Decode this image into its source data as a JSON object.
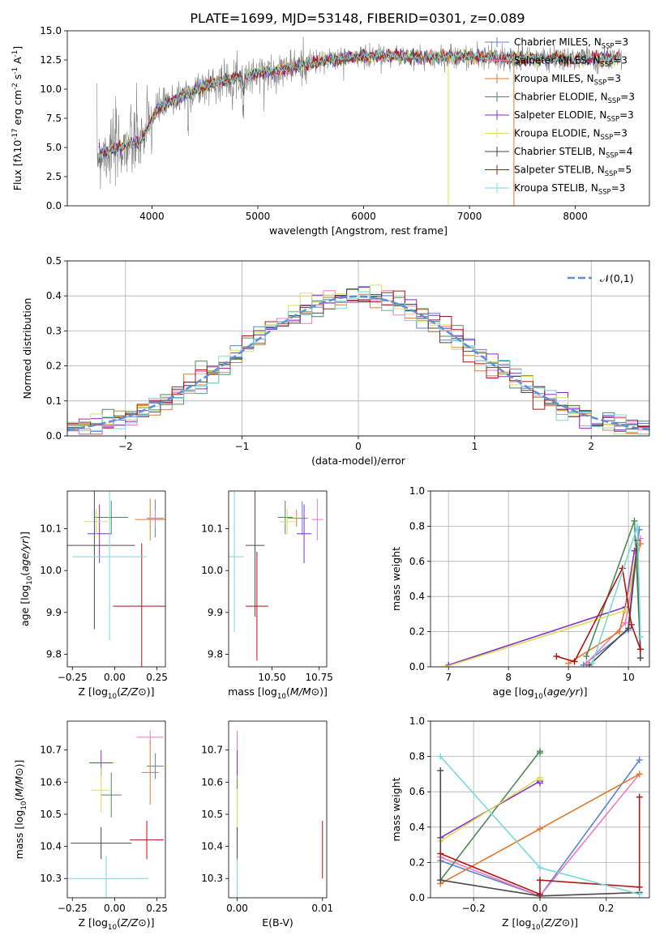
{
  "figure": {
    "title": "PLATE=1699, MJD=53148, FIBERID=0301, z=0.089"
  },
  "legend_labels": [
    "Chabrier MILES, N$_{SSP}$=3",
    "Salpeter MILES, N$_{SSP}$=3",
    "Kroupa MILES, N$_{SSP}$=3",
    "Chabrier ELODIE, N$_{SSP}$=3",
    "Salpeter ELODIE, N$_{SSP}$=3",
    "Kroupa ELODIE, N$_{SSP}$=3",
    "Chabrier STELIB, N$_{SSP}$=4",
    "Salpeter STELIB, N$_{SSP}$=5",
    "Kroupa STELIB, N$_{SSP}$=3"
  ],
  "colors": {
    "model_colors": [
      "#5b83d6",
      "#f07ac0",
      "#e07b2e",
      "#4e8a56",
      "#8b2fc4",
      "#d8e05a",
      "#4a4a4a",
      "#b01414",
      "#7ad8da"
    ],
    "data_gray": "#808080",
    "gauss_blue": "#5b8fd6"
  },
  "chart_data": [
    {
      "type": "line",
      "panel": "spectrum",
      "title": "PLATE=1699, MJD=53148, FIBERID=0301, z=0.089",
      "xlabel": "wavelength [Angstrom, rest frame]",
      "ylabel": "Flux [f$_\\lambda$10$^{-17}$ erg cm$^{-2}$ s$^{-1}$ A$^{-1}$]",
      "xlim": [
        3200,
        8700
      ],
      "ylim": [
        0,
        15
      ],
      "xticks": [
        4000,
        5000,
        6000,
        7000,
        8000
      ],
      "yticks": [
        0.0,
        2.5,
        5.0,
        7.5,
        10.0,
        12.5,
        15.0
      ],
      "continuum_x": [
        3500,
        3700,
        3900,
        4050,
        4300,
        4600,
        5000,
        5400,
        5800,
        6200,
        6600,
        7000,
        7500,
        8000,
        8400
      ],
      "continuum_y": [
        4.5,
        5.0,
        5.6,
        8.3,
        9.5,
        10.6,
        11.3,
        12.0,
        12.7,
        12.9,
        12.7,
        12.8,
        12.6,
        12.6,
        12.6
      ],
      "legend_placement": "right"
    },
    {
      "type": "histogram",
      "panel": "residuals",
      "xlabel": "(data-model)/error",
      "ylabel": "Normed distribution",
      "xlim": [
        -2.5,
        2.5
      ],
      "ylim": [
        0,
        0.5
      ],
      "xticks": [
        -2,
        -1,
        0,
        1,
        2
      ],
      "yticks": [
        0.0,
        0.1,
        0.2,
        0.3,
        0.4,
        0.5
      ],
      "bin_width": 0.1,
      "gaussian_label": "$\\mathcal{N}(0,1)$",
      "grid": true,
      "legend_placement": "top-right"
    },
    {
      "type": "scatter",
      "panel": "Z vs age",
      "xlabel": "Z [log$_{10}$($Z/Z_\\odot$)]",
      "ylabel": "age  [log$_{10}$($age/yr$)]",
      "xlim": [
        -0.28,
        0.3
      ],
      "ylim": [
        9.77,
        10.19
      ],
      "xticks": [
        -0.25,
        0.0,
        0.25
      ],
      "xtick_labels": [
        "−0.25",
        "0.00",
        "0.25"
      ],
      "yticks": [
        9.8,
        9.9,
        10.0,
        10.1
      ],
      "points": [
        {
          "x": 0.24,
          "y": 10.125,
          "xerr": 0.05,
          "yerr": 0.045
        },
        {
          "x": 0.24,
          "y": 10.125,
          "xerr": 0.04,
          "yerr": 0.02
        },
        {
          "x": 0.21,
          "y": 10.122,
          "xerr": 0.09,
          "yerr": 0.05
        },
        {
          "x": -0.02,
          "y": 10.127,
          "xerr": 0.1,
          "yerr": 0.04
        },
        {
          "x": -0.09,
          "y": 10.088,
          "xerr": 0.07,
          "yerr": 0.07
        },
        {
          "x": -0.11,
          "y": 10.117,
          "xerr": 0.07,
          "yerr": 0.03
        },
        {
          "x": -0.12,
          "y": 10.06,
          "xerr": 0.24,
          "yerr": 0.2
        },
        {
          "x": 0.16,
          "y": 9.915,
          "xerr": 0.17,
          "yerr": 0.15
        },
        {
          "x": -0.03,
          "y": 10.033,
          "xerr": 0.22,
          "yerr": 0.2
        }
      ]
    },
    {
      "type": "scatter",
      "panel": "mass vs age",
      "xlabel": "mass [log$_{10}$($M/M_\\odot$)]",
      "ylabel": "",
      "xlim": [
        10.27,
        10.79
      ],
      "ylim": [
        9.77,
        10.19
      ],
      "xticks": [
        10.25,
        10.5,
        10.75
      ],
      "xtick_labels": [
        "10.25",
        "10.50",
        "10.75"
      ],
      "yticks": [
        9.8,
        9.9,
        10.0,
        10.1
      ],
      "points": [
        {
          "x": 10.66,
          "y": 10.125,
          "xerr": 0.03,
          "yerr": 0.04
        },
        {
          "x": 10.74,
          "y": 10.122,
          "xerr": 0.03,
          "yerr": 0.05
        },
        {
          "x": 10.63,
          "y": 10.125,
          "xerr": 0.05,
          "yerr": 0.02
        },
        {
          "x": 10.57,
          "y": 10.127,
          "xerr": 0.04,
          "yerr": 0.04
        },
        {
          "x": 10.67,
          "y": 10.088,
          "xerr": 0.04,
          "yerr": 0.07
        },
        {
          "x": 10.58,
          "y": 10.117,
          "xerr": 0.04,
          "yerr": 0.03
        },
        {
          "x": 10.41,
          "y": 10.06,
          "xerr": 0.05,
          "yerr": 0.17
        },
        {
          "x": 10.42,
          "y": 9.915,
          "xerr": 0.06,
          "yerr": 0.13
        },
        {
          "x": 10.3,
          "y": 10.033,
          "xerr": 0.05,
          "yerr": 0.18
        }
      ]
    },
    {
      "type": "line",
      "panel": "age vs mass weight",
      "xlabel": "age  [log$_{10}$($age/yr$)]",
      "ylabel": "mass weight",
      "xlim": [
        6.7,
        10.35
      ],
      "ylim": [
        0,
        1
      ],
      "xticks": [
        7,
        8,
        9,
        10
      ],
      "yticks": [
        0.0,
        0.2,
        0.4,
        0.6,
        0.8,
        1.0
      ],
      "grid": true,
      "series": [
        {
          "x": [
            9.25,
            10.0,
            10.18
          ],
          "y": [
            0.01,
            0.21,
            0.78
          ]
        },
        {
          "x": [
            9.3,
            9.95,
            10.2
          ],
          "y": [
            0.02,
            0.25,
            0.73
          ]
        },
        {
          "x": [
            9.0,
            9.85,
            10.2
          ],
          "y": [
            0.02,
            0.2,
            0.7
          ]
        },
        {
          "x": [
            9.3,
            10.1,
            10.2
          ],
          "y": [
            0.06,
            0.83,
            0.1
          ]
        },
        {
          "x": [
            7.0,
            9.95,
            10.1
          ],
          "y": [
            0.01,
            0.34,
            0.66
          ]
        },
        {
          "x": [
            6.95,
            9.95,
            10.15
          ],
          "y": [
            0.0,
            0.32,
            0.68
          ]
        },
        {
          "x": [
            9.35,
            10.0,
            10.15,
            10.2
          ],
          "y": [
            0.01,
            0.22,
            0.72,
            0.05
          ]
        },
        {
          "x": [
            8.8,
            9.1,
            9.9,
            10.05,
            10.2
          ],
          "y": [
            0.06,
            0.03,
            0.56,
            0.24,
            0.1
          ]
        },
        {
          "x": [
            9.4,
            10.15,
            10.2
          ],
          "y": [
            0.02,
            0.8,
            0.17
          ]
        }
      ]
    },
    {
      "type": "scatter",
      "panel": "Z vs mass",
      "xlabel": "Z [log$_{10}$($Z/Z_\\odot$)]",
      "ylabel": "mass [log$_{10}$($M/M_\\odot$)]",
      "xlim": [
        -0.28,
        0.3
      ],
      "ylim": [
        10.24,
        10.79
      ],
      "xticks": [
        -0.25,
        0.0,
        0.25
      ],
      "xtick_labels": [
        "−0.25",
        "0.00",
        "0.25"
      ],
      "yticks": [
        10.3,
        10.4,
        10.5,
        10.6,
        10.7
      ],
      "points": [
        {
          "x": 0.24,
          "y": 10.65,
          "xerr": 0.05,
          "yerr": 0.04
        },
        {
          "x": 0.21,
          "y": 10.74,
          "xerr": 0.08,
          "yerr": 0.02
        },
        {
          "x": 0.21,
          "y": 10.63,
          "xerr": 0.05,
          "yerr": 0.1
        },
        {
          "x": -0.02,
          "y": 10.56,
          "xerr": 0.06,
          "yerr": 0.07
        },
        {
          "x": -0.08,
          "y": 10.66,
          "xerr": 0.07,
          "yerr": 0.04
        },
        {
          "x": -0.08,
          "y": 10.575,
          "xerr": 0.06,
          "yerr": 0.07
        },
        {
          "x": -0.08,
          "y": 10.41,
          "xerr": 0.18,
          "yerr": 0.05
        },
        {
          "x": 0.19,
          "y": 10.42,
          "xerr": 0.1,
          "yerr": 0.06
        },
        {
          "x": -0.05,
          "y": 10.3,
          "xerr": 0.25,
          "yerr": 0.07
        }
      ]
    },
    {
      "type": "scatter",
      "panel": "E(B-V) vs mass",
      "xlabel": "E(B-V)",
      "ylabel": "",
      "xlim": [
        -0.001,
        0.0105
      ],
      "ylim": [
        10.24,
        10.79
      ],
      "xticks": [
        0.0,
        0.01
      ],
      "xtick_labels": [
        "0.00",
        "0.01"
      ],
      "yticks": [
        10.3,
        10.4,
        10.5,
        10.6,
        10.7
      ],
      "points": [
        {
          "x": 0.0,
          "y": 10.65,
          "xerr": 0,
          "yerr": 0.04
        },
        {
          "x": 0.0,
          "y": 10.7,
          "xerr": 0,
          "yerr": 0.06
        },
        {
          "x": 0.0,
          "y": 10.63,
          "xerr": 0,
          "yerr": 0.06
        },
        {
          "x": 0.0,
          "y": 10.56,
          "xerr": 0,
          "yerr": 0.05
        },
        {
          "x": 0.0,
          "y": 10.66,
          "xerr": 0,
          "yerr": 0.04
        },
        {
          "x": 0.0,
          "y": 10.5,
          "xerr": 0,
          "yerr": 0.08
        },
        {
          "x": 0.0,
          "y": 10.41,
          "xerr": 0,
          "yerr": 0.05
        },
        {
          "x": 0.01,
          "y": 10.39,
          "xerr": 0,
          "yerr": 0.09
        },
        {
          "x": 0.0,
          "y": 10.3,
          "xerr": 0,
          "yerr": 0.06
        }
      ]
    },
    {
      "type": "line",
      "panel": "Z vs mass weight",
      "xlabel": "Z [log$_{10}$($Z/Z_\\odot$)]",
      "ylabel": "mass weight",
      "xlim": [
        -0.33,
        0.33
      ],
      "ylim": [
        0,
        1
      ],
      "xticks": [
        -0.2,
        0.0,
        0.2
      ],
      "xtick_labels": [
        "−0.2",
        "0.0",
        "0.2"
      ],
      "yticks": [
        0.0,
        0.2,
        0.4,
        0.6,
        0.8,
        1.0
      ],
      "grid": true,
      "series": [
        {
          "x": [
            -0.3,
            0.0,
            0.3
          ],
          "y": [
            0.21,
            0.01,
            0.78
          ]
        },
        {
          "x": [
            -0.3,
            0.0,
            0.3
          ],
          "y": [
            0.23,
            0.01,
            0.7
          ]
        },
        {
          "x": [
            -0.3,
            0.0,
            0.3
          ],
          "y": [
            0.08,
            0.39,
            0.7
          ]
        },
        {
          "x": [
            -0.3,
            0.0,
            0.0
          ],
          "y": [
            0.1,
            0.83,
            0.82
          ]
        },
        {
          "x": [
            -0.3,
            0.0,
            0.0
          ],
          "y": [
            0.34,
            0.66,
            0.65
          ]
        },
        {
          "x": [
            -0.3,
            0.0,
            0.0
          ],
          "y": [
            0.32,
            0.68,
            0.67
          ]
        },
        {
          "x": [
            -0.3,
            -0.3,
            0.0,
            0.3
          ],
          "y": [
            0.72,
            0.1,
            0.01,
            0.03
          ]
        },
        {
          "x": [
            -0.3,
            0.0,
            0.0,
            0.3,
            0.3
          ],
          "y": [
            0.25,
            0.02,
            0.1,
            0.06,
            0.57
          ]
        },
        {
          "x": [
            -0.3,
            0.0,
            0.3
          ],
          "y": [
            0.8,
            0.17,
            0.02
          ]
        }
      ]
    }
  ]
}
